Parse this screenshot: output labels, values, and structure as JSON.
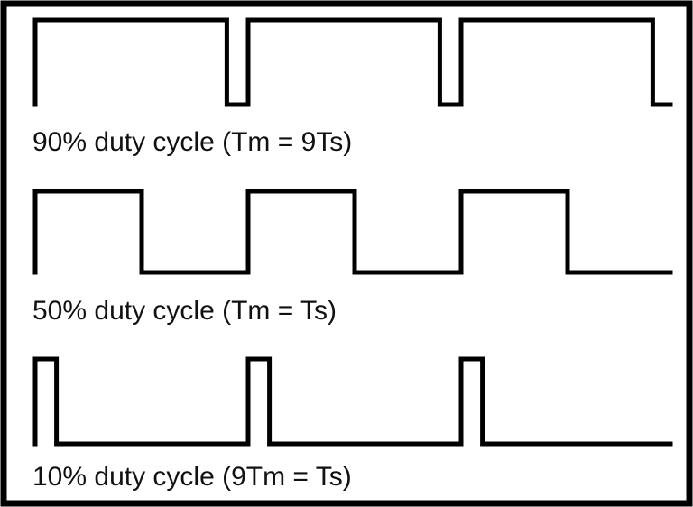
{
  "diagram": {
    "rows": [
      {
        "label": "90% duty cycle (Tm = 9Ts)",
        "duty_cycle_percent": 90,
        "periods_shown": 3
      },
      {
        "label": "50% duty cycle (Tm = Ts)",
        "duty_cycle_percent": 50,
        "periods_shown": 3
      },
      {
        "label": "10% duty cycle (9Tm = Ts)",
        "duty_cycle_percent": 10,
        "periods_shown": 3
      }
    ]
  },
  "colors": {
    "line": "#000000",
    "background": "#ffffff",
    "text": "#111111"
  }
}
